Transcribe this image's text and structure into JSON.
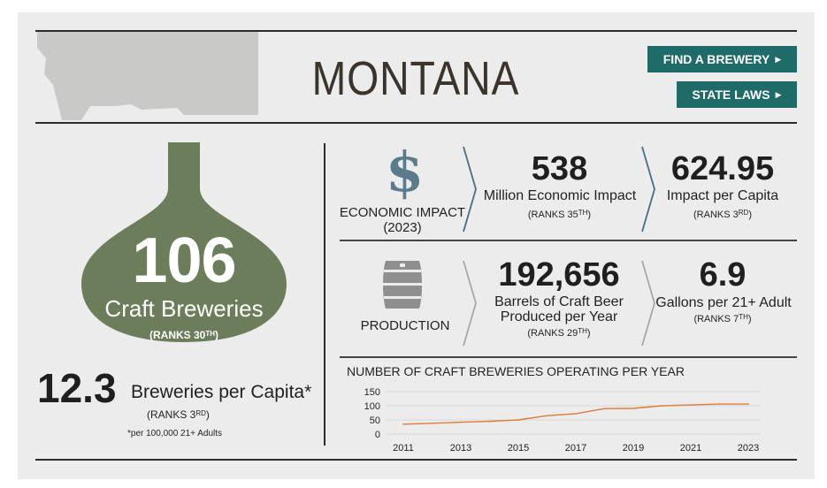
{
  "header": {
    "state_name": "MONTANA"
  },
  "buttons": {
    "find_brewery": "FIND A BREWERY",
    "state_laws": "STATE LAWS"
  },
  "craft": {
    "count": "106",
    "label": "Craft Breweries",
    "rank_prefix": "(RANKS 30",
    "rank_suffix": "TH",
    "rank_close": ")"
  },
  "per_capita": {
    "value": "12.3",
    "label": "Breweries per Capita*",
    "rank_prefix": "(RANKS 3",
    "rank_suffix": "RD",
    "rank_close": ")",
    "note": "*per 100,000 21+ Adults"
  },
  "economic": {
    "category_line1": "ECONOMIC IMPACT",
    "category_line2": "(2023)",
    "impact_value": "538",
    "impact_label": "Million Economic Impact",
    "impact_rank_prefix": "(RANKS 35",
    "impact_rank_suffix": "TH",
    "impact_rank_close": ")",
    "capita_value": "624.95",
    "capita_label": "Impact per Capita",
    "capita_rank_prefix": "(RANKS 3",
    "capita_rank_suffix": "RD",
    "capita_rank_close": ")"
  },
  "production": {
    "category": "PRODUCTION",
    "barrels_value": "192,656",
    "barrels_label_line1": "Barrels of Craft Beer",
    "barrels_label_line2": "Produced per Year",
    "barrels_rank_prefix": "(RANKS 29",
    "barrels_rank_suffix": "TH",
    "barrels_rank_close": ")",
    "gallons_value": "6.9",
    "gallons_label": "Gallons per 21+ Adult",
    "gallons_rank_prefix": "(RANKS 7",
    "gallons_rank_suffix": "TH",
    "gallons_rank_close": ")"
  },
  "icons": {
    "economic": "dollar-icon",
    "production": "barrel-icon",
    "craft": "bottle-icon",
    "state": "montana-map-icon"
  },
  "colors": {
    "accent": "#1f6b69",
    "bottle": "#6b7d5a",
    "dollar": "#5b7a8c",
    "line": "#e07b39"
  },
  "chart_data": {
    "type": "line",
    "title": "NUMBER OF CRAFT BREWERIES OPERATING PER YEAR",
    "x": [
      2011,
      2012,
      2013,
      2014,
      2015,
      2016,
      2017,
      2018,
      2019,
      2020,
      2021,
      2022,
      2023
    ],
    "x_tick_labels": [
      "2011",
      "2013",
      "2015",
      "2017",
      "2019",
      "2021",
      "2023"
    ],
    "series": [
      {
        "values": [
          35,
          38,
          42,
          45,
          50,
          65,
          72,
          90,
          91,
          100,
          103,
          106,
          106
        ]
      }
    ],
    "ylim": [
      0,
      150
    ],
    "y_ticks": [
      0,
      50,
      100,
      150
    ],
    "y_tick_labels": [
      "0",
      "50",
      "100",
      "150"
    ],
    "grid": "horizontal"
  }
}
